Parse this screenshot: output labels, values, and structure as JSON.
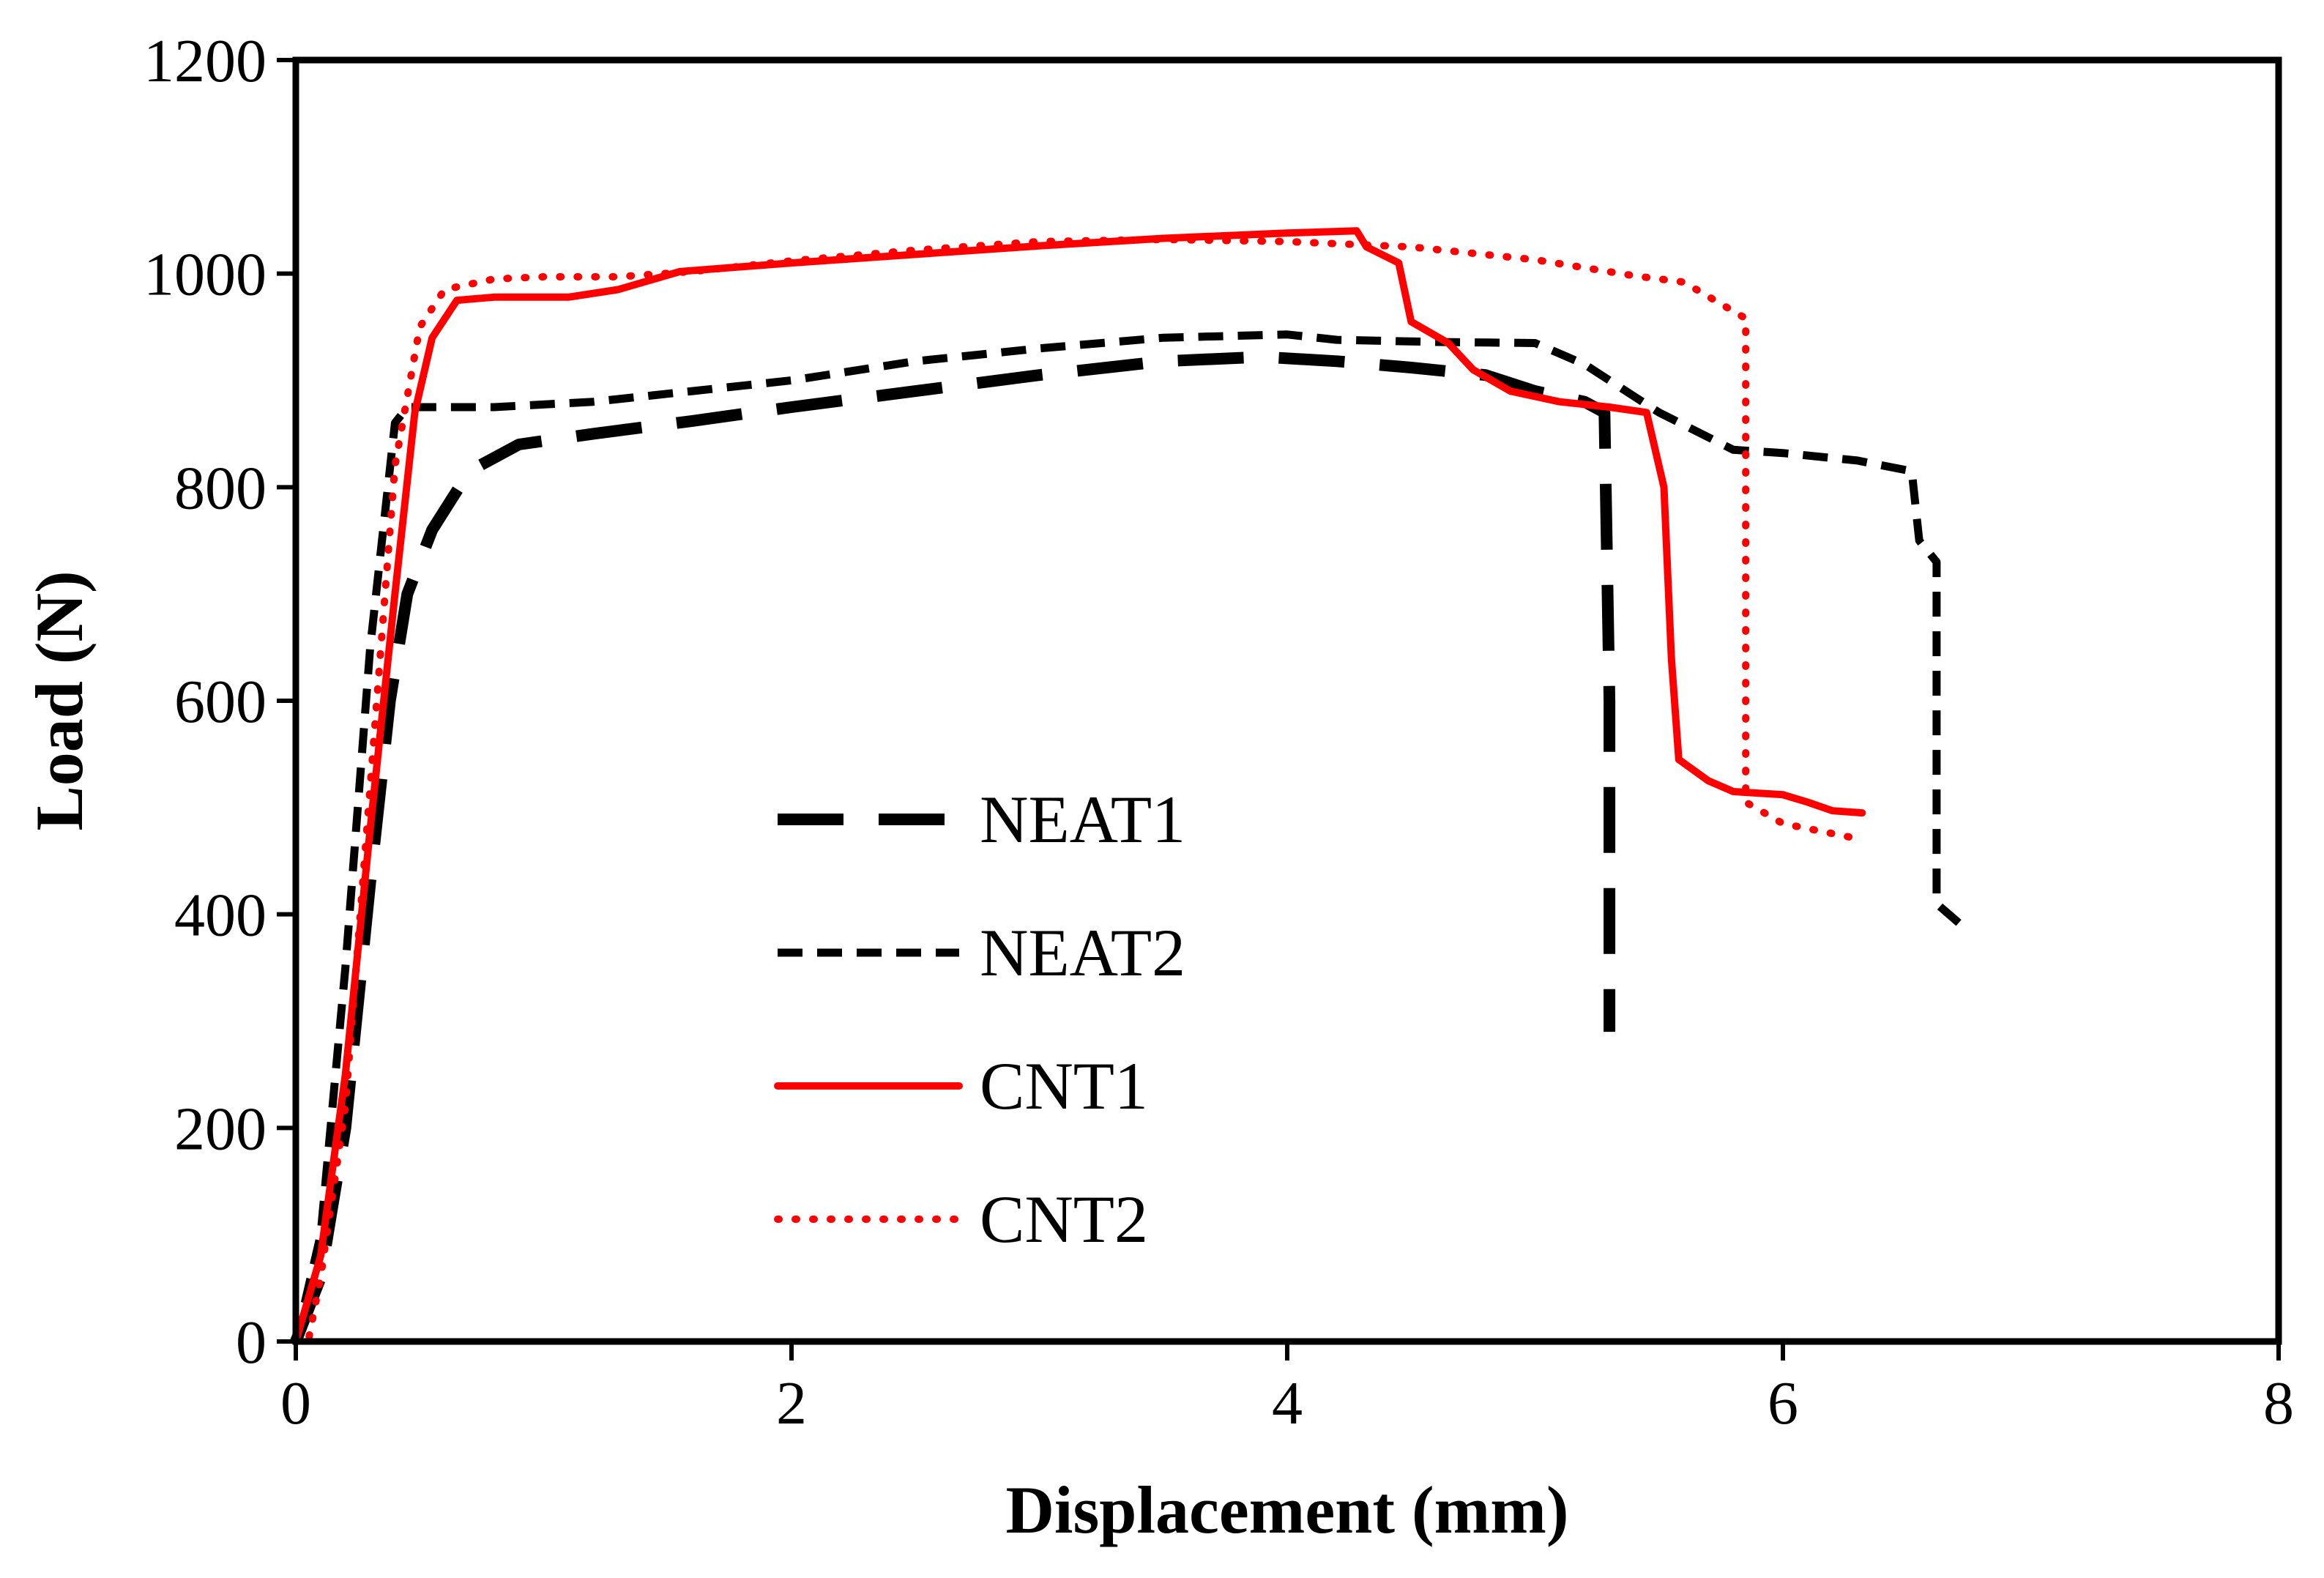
{
  "chart_data": {
    "type": "line",
    "title": "",
    "xlabel": "Displacement  (mm)",
    "ylabel": "Load (N)",
    "xlim": [
      0,
      8
    ],
    "ylim": [
      0,
      1200
    ],
    "xticks": [
      0,
      2,
      4,
      6,
      8
    ],
    "yticks": [
      0,
      200,
      400,
      600,
      800,
      1000,
      1200
    ],
    "xtick_labels": [
      "0",
      "2",
      "4",
      "6",
      "8"
    ],
    "ytick_labels": [
      "0",
      "200",
      "400",
      "600",
      "800",
      "1000",
      "1200"
    ],
    "grid": false,
    "legend_position": "center-left",
    "series": [
      {
        "name": "NEAT1",
        "color": "#000000",
        "style": "long-dash",
        "points": [
          [
            0,
            0
          ],
          [
            0.1,
            60
          ],
          [
            0.2,
            200
          ],
          [
            0.3,
            430
          ],
          [
            0.38,
            600
          ],
          [
            0.45,
            700
          ],
          [
            0.55,
            760
          ],
          [
            0.7,
            815
          ],
          [
            0.9,
            840
          ],
          [
            1.2,
            850
          ],
          [
            1.6,
            862
          ],
          [
            2.0,
            875
          ],
          [
            2.5,
            890
          ],
          [
            3.0,
            905
          ],
          [
            3.5,
            918
          ],
          [
            3.9,
            922
          ],
          [
            4.2,
            918
          ],
          [
            4.5,
            912
          ],
          [
            4.8,
            905
          ],
          [
            5.0,
            890
          ],
          [
            5.2,
            880
          ],
          [
            5.28,
            870
          ],
          [
            5.3,
            600
          ],
          [
            5.3,
            290
          ]
        ]
      },
      {
        "name": "NEAT2",
        "color": "#000000",
        "style": "short-dash",
        "points": [
          [
            0,
            0
          ],
          [
            0.1,
            100
          ],
          [
            0.2,
            350
          ],
          [
            0.3,
            650
          ],
          [
            0.4,
            860
          ],
          [
            0.45,
            875
          ],
          [
            0.8,
            875
          ],
          [
            1.2,
            880
          ],
          [
            1.6,
            890
          ],
          [
            2.0,
            900
          ],
          [
            2.5,
            918
          ],
          [
            3.0,
            930
          ],
          [
            3.5,
            940
          ],
          [
            4.0,
            943
          ],
          [
            4.2,
            938
          ],
          [
            4.6,
            936
          ],
          [
            5.0,
            935
          ],
          [
            5.2,
            915
          ],
          [
            5.5,
            870
          ],
          [
            5.8,
            835
          ],
          [
            6.0,
            832
          ],
          [
            6.3,
            825
          ],
          [
            6.52,
            815
          ],
          [
            6.55,
            750
          ],
          [
            6.62,
            730
          ],
          [
            6.62,
            410
          ],
          [
            6.72,
            390
          ]
        ]
      },
      {
        "name": "CNT1",
        "color": "#ff0000",
        "style": "solid",
        "points": [
          [
            0,
            0
          ],
          [
            0.1,
            80
          ],
          [
            0.2,
            250
          ],
          [
            0.3,
            480
          ],
          [
            0.4,
            700
          ],
          [
            0.48,
            870
          ],
          [
            0.55,
            940
          ],
          [
            0.65,
            975
          ],
          [
            0.8,
            978
          ],
          [
            1.1,
            978
          ],
          [
            1.3,
            985
          ],
          [
            1.55,
            1002
          ],
          [
            2.0,
            1010
          ],
          [
            2.5,
            1018
          ],
          [
            3.0,
            1026
          ],
          [
            3.5,
            1033
          ],
          [
            4.0,
            1038
          ],
          [
            4.28,
            1040
          ],
          [
            4.32,
            1025
          ],
          [
            4.45,
            1010
          ],
          [
            4.5,
            955
          ],
          [
            4.65,
            935
          ],
          [
            4.75,
            910
          ],
          [
            4.9,
            890
          ],
          [
            5.1,
            880
          ],
          [
            5.3,
            875
          ],
          [
            5.45,
            870
          ],
          [
            5.52,
            800
          ],
          [
            5.55,
            640
          ],
          [
            5.58,
            545
          ],
          [
            5.7,
            525
          ],
          [
            5.8,
            515
          ],
          [
            6.0,
            512
          ],
          [
            6.1,
            505
          ],
          [
            6.2,
            497
          ],
          [
            6.32,
            495
          ]
        ]
      },
      {
        "name": "CNT2",
        "color": "#ff0000",
        "style": "dotted",
        "points": [
          [
            0,
            0
          ],
          [
            0.05,
            0
          ],
          [
            0.1,
            60
          ],
          [
            0.2,
            220
          ],
          [
            0.3,
            520
          ],
          [
            0.4,
            820
          ],
          [
            0.5,
            950
          ],
          [
            0.6,
            985
          ],
          [
            0.8,
            995
          ],
          [
            1.0,
            997
          ],
          [
            1.3,
            997
          ],
          [
            1.6,
            1002
          ],
          [
            2.0,
            1012
          ],
          [
            2.5,
            1022
          ],
          [
            3.0,
            1030
          ],
          [
            3.5,
            1032
          ],
          [
            4.0,
            1030
          ],
          [
            4.5,
            1025
          ],
          [
            5.0,
            1013
          ],
          [
            5.4,
            998
          ],
          [
            5.6,
            992
          ],
          [
            5.85,
            958
          ],
          [
            5.85,
            505
          ],
          [
            6.0,
            485
          ],
          [
            6.32,
            470
          ]
        ]
      }
    ]
  }
}
